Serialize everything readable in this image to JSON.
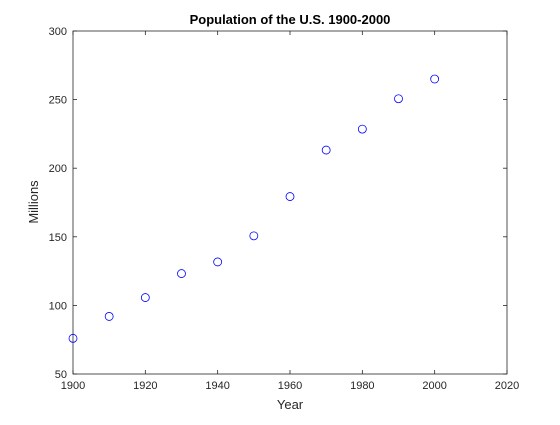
{
  "chart_data": {
    "type": "scatter",
    "title": "Population of the U.S. 1900-2000",
    "xlabel": "Year",
    "ylabel": "Millions",
    "xlim": [
      1900,
      2020
    ],
    "ylim": [
      50,
      300
    ],
    "xticks": [
      "1900",
      "1920",
      "1940",
      "1960",
      "1980",
      "2000",
      "2020"
    ],
    "yticks": [
      "50",
      "100",
      "150",
      "200",
      "250",
      "300"
    ],
    "grid": false,
    "marker": "circle-open",
    "series": [
      {
        "color": "#0000ff",
        "x": [
          1900,
          1910,
          1920,
          1930,
          1940,
          1950,
          1960,
          1970,
          1980,
          1990,
          2000
        ],
        "y": [
          75.995,
          91.972,
          105.711,
          123.203,
          131.669,
          150.697,
          179.323,
          213.212,
          228.505,
          250.633,
          265.0
        ]
      }
    ]
  }
}
